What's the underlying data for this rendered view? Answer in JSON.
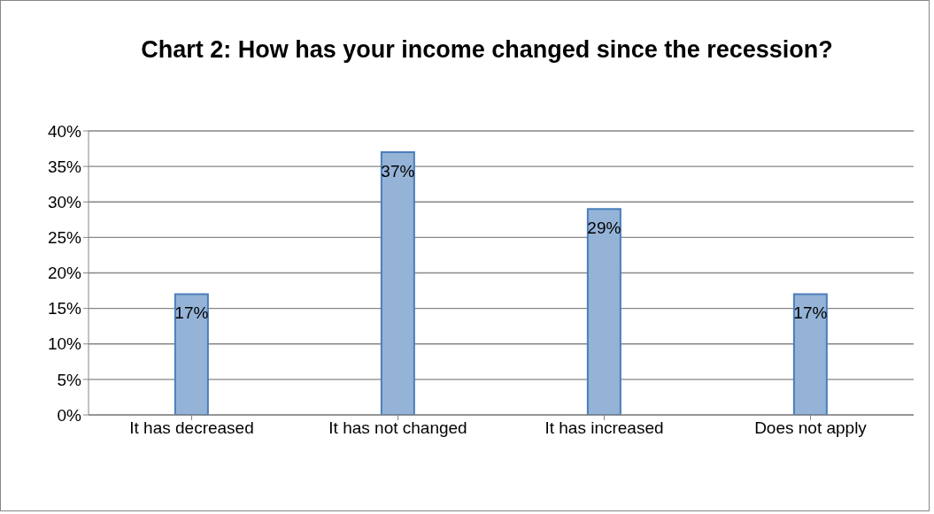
{
  "chart_data": {
    "type": "bar",
    "title": "Chart 2: How has your income changed since the recession?",
    "categories": [
      "It has decreased",
      "It has not changed",
      "It has increased",
      "Does not apply"
    ],
    "values": [
      17,
      37,
      29,
      17
    ],
    "color": "#95b3d7",
    "value_labels": [
      "17%",
      "37%",
      "29%",
      "17%"
    ],
    "ylim": [
      0,
      40
    ],
    "yticks": [
      {
        "value": 0,
        "label": "0%"
      },
      {
        "value": 5,
        "label": "5%"
      },
      {
        "value": 10,
        "label": "10%"
      },
      {
        "value": 15,
        "label": "15%"
      },
      {
        "value": 20,
        "label": "20%"
      },
      {
        "value": 25,
        "label": "25%"
      },
      {
        "value": 30,
        "label": "30%"
      },
      {
        "value": 35,
        "label": "35%"
      },
      {
        "value": 40,
        "label": "40%"
      }
    ],
    "grid": "y"
  }
}
